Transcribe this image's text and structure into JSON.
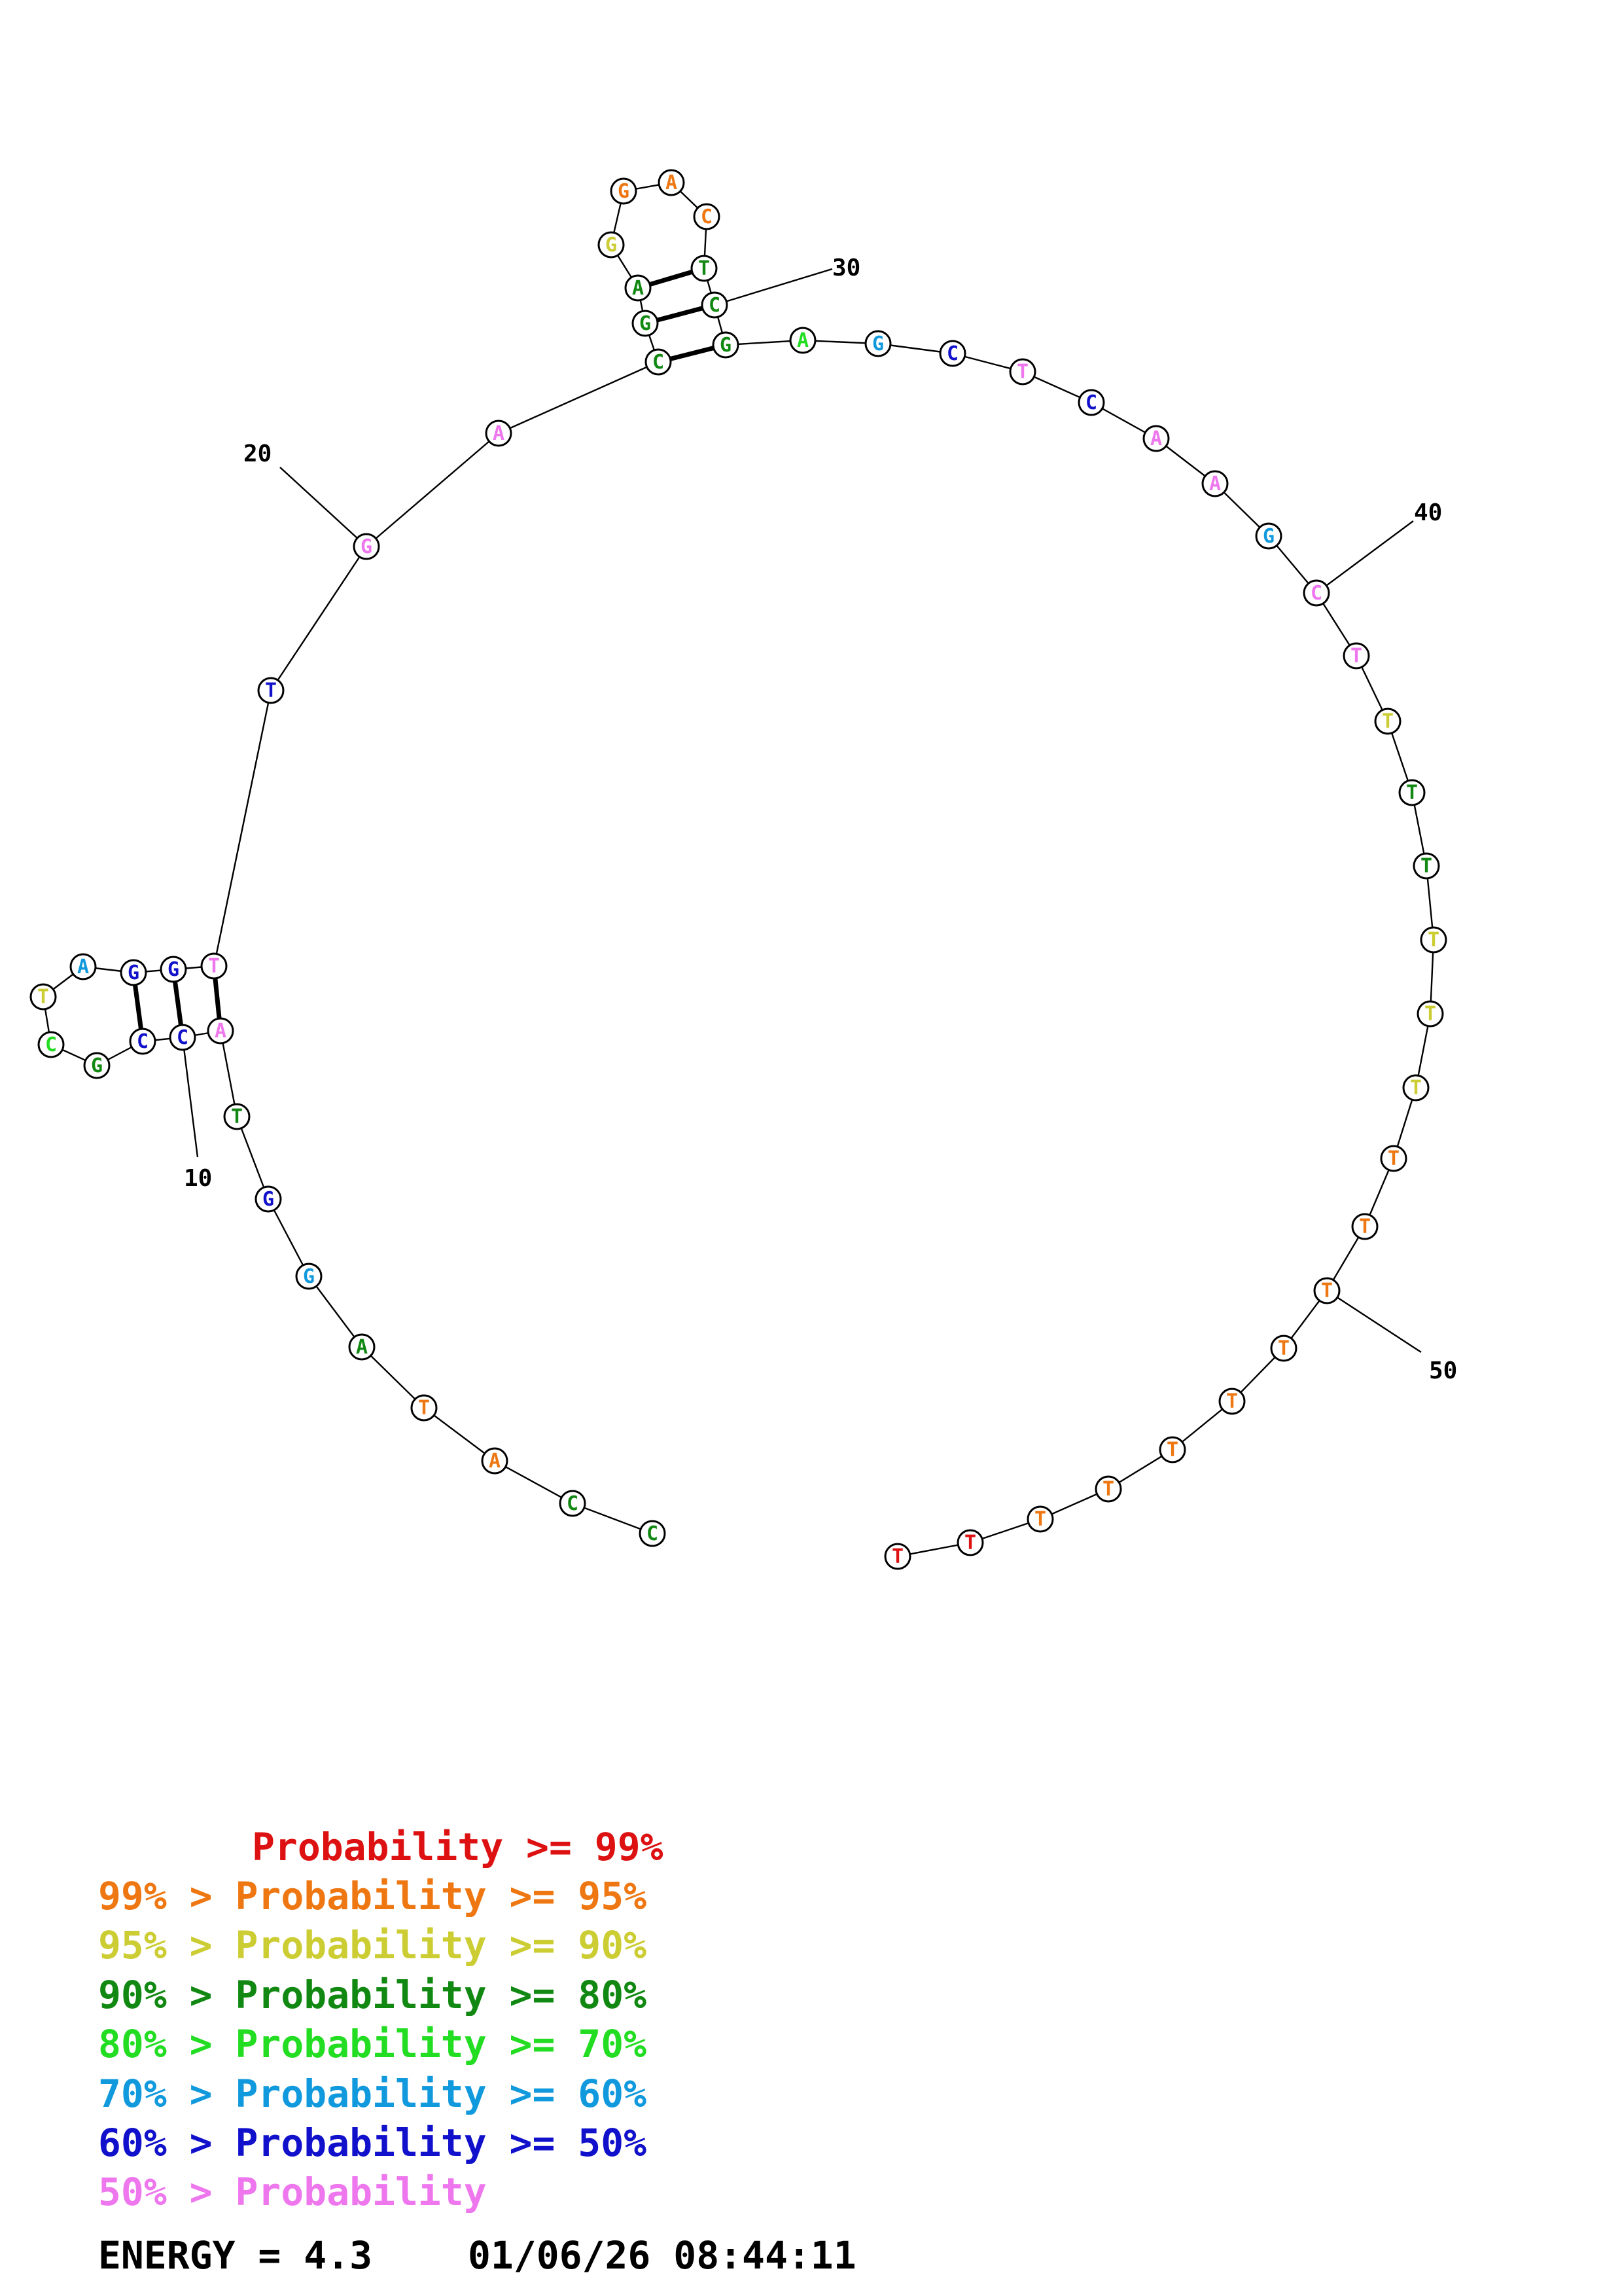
{
  "bases": [
    {
      "n": 1,
      "letter": "C",
      "color": "#118811"
    },
    {
      "n": 2,
      "letter": "C",
      "color": "#118811"
    },
    {
      "n": 3,
      "letter": "A",
      "color": "#ee7711"
    },
    {
      "n": 4,
      "letter": "T",
      "color": "#ee7711"
    },
    {
      "n": 5,
      "letter": "A",
      "color": "#118811"
    },
    {
      "n": 6,
      "letter": "G",
      "color": "#1199dd"
    },
    {
      "n": 7,
      "letter": "G",
      "color": "#1111cc"
    },
    {
      "n": 8,
      "letter": "T",
      "color": "#118811"
    },
    {
      "n": 9,
      "letter": "A",
      "color": "#ee77ee"
    },
    {
      "n": 10,
      "letter": "C",
      "color": "#1111cc"
    },
    {
      "n": 11,
      "letter": "C",
      "color": "#1111cc"
    },
    {
      "n": 12,
      "letter": "G",
      "color": "#118811"
    },
    {
      "n": 13,
      "letter": "C",
      "color": "#22dd22"
    },
    {
      "n": 14,
      "letter": "T",
      "color": "#cccc33"
    },
    {
      "n": 15,
      "letter": "A",
      "color": "#1199dd"
    },
    {
      "n": 16,
      "letter": "G",
      "color": "#1111cc"
    },
    {
      "n": 17,
      "letter": "G",
      "color": "#1111cc"
    },
    {
      "n": 18,
      "letter": "T",
      "color": "#ee77ee"
    },
    {
      "n": 19,
      "letter": "T",
      "color": "#1111cc"
    },
    {
      "n": 20,
      "letter": "G",
      "color": "#ee77ee"
    },
    {
      "n": 21,
      "letter": "A",
      "color": "#ee77ee"
    },
    {
      "n": 22,
      "letter": "C",
      "color": "#118811"
    },
    {
      "n": 23,
      "letter": "G",
      "color": "#118811"
    },
    {
      "n": 24,
      "letter": "A",
      "color": "#118811"
    },
    {
      "n": 25,
      "letter": "G",
      "color": "#cccc33"
    },
    {
      "n": 26,
      "letter": "G",
      "color": "#ee7711"
    },
    {
      "n": 27,
      "letter": "A",
      "color": "#ee7711"
    },
    {
      "n": 28,
      "letter": "C",
      "color": "#ee7711"
    },
    {
      "n": 29,
      "letter": "T",
      "color": "#118811"
    },
    {
      "n": 30,
      "letter": "C",
      "color": "#118811"
    },
    {
      "n": 31,
      "letter": "G",
      "color": "#118811"
    },
    {
      "n": 32,
      "letter": "A",
      "color": "#22dd22"
    },
    {
      "n": 33,
      "letter": "G",
      "color": "#1199dd"
    },
    {
      "n": 34,
      "letter": "C",
      "color": "#1111cc"
    },
    {
      "n": 35,
      "letter": "T",
      "color": "#ee77ee"
    },
    {
      "n": 36,
      "letter": "C",
      "color": "#1111cc"
    },
    {
      "n": 37,
      "letter": "A",
      "color": "#ee77ee"
    },
    {
      "n": 38,
      "letter": "A",
      "color": "#ee77ee"
    },
    {
      "n": 39,
      "letter": "G",
      "color": "#1199dd"
    },
    {
      "n": 40,
      "letter": "C",
      "color": "#ee77ee"
    },
    {
      "n": 41,
      "letter": "T",
      "color": "#ee77ee"
    },
    {
      "n": 42,
      "letter": "T",
      "color": "#cccc33"
    },
    {
      "n": 43,
      "letter": "T",
      "color": "#118811"
    },
    {
      "n": 44,
      "letter": "T",
      "color": "#118811"
    },
    {
      "n": 45,
      "letter": "T",
      "color": "#cccc33"
    },
    {
      "n": 46,
      "letter": "T",
      "color": "#cccc33"
    },
    {
      "n": 47,
      "letter": "T",
      "color": "#cccc33"
    },
    {
      "n": 48,
      "letter": "T",
      "color": "#ee7711"
    },
    {
      "n": 49,
      "letter": "T",
      "color": "#ee7711"
    },
    {
      "n": 50,
      "letter": "T",
      "color": "#ee7711"
    },
    {
      "n": 51,
      "letter": "T",
      "color": "#ee7711"
    },
    {
      "n": 52,
      "letter": "T",
      "color": "#ee7711"
    },
    {
      "n": 53,
      "letter": "T",
      "color": "#ee7711"
    },
    {
      "n": 54,
      "letter": "T",
      "color": "#ee7711"
    },
    {
      "n": 55,
      "letter": "T",
      "color": "#ee7711"
    },
    {
      "n": 56,
      "letter": "T",
      "color": "#dd1111"
    },
    {
      "n": 57,
      "letter": "T",
      "color": "#dd1111"
    }
  ],
  "pairs": [
    [
      9,
      18
    ],
    [
      10,
      17
    ],
    [
      11,
      16
    ],
    [
      22,
      31
    ],
    [
      23,
      30
    ],
    [
      24,
      29
    ]
  ],
  "position_labels": [
    {
      "n": 10,
      "text": "10"
    },
    {
      "n": 20,
      "text": "20"
    },
    {
      "n": 30,
      "text": "30"
    },
    {
      "n": 40,
      "text": "40"
    },
    {
      "n": 50,
      "text": "50"
    }
  ],
  "legend": [
    {
      "prefix": "    ",
      "text": "Probability >= 99%",
      "color": "#dd1111"
    },
    {
      "prefix": "99% > ",
      "text": "Probability >= 95%",
      "color": "#ee7711"
    },
    {
      "prefix": "95% > ",
      "text": "Probability >= 90%",
      "color": "#cccc33"
    },
    {
      "prefix": "90% > ",
      "text": "Probability >= 80%",
      "color": "#118811"
    },
    {
      "prefix": "80% > ",
      "text": "Probability >= 70%",
      "color": "#22dd22"
    },
    {
      "prefix": "70% > ",
      "text": "Probability >= 60%",
      "color": "#1199dd"
    },
    {
      "prefix": "60% > ",
      "text": "Probability >= 50%",
      "color": "#1111cc"
    },
    {
      "prefix": "50% > ",
      "text": "Probability",
      "color": "#ee77ee"
    }
  ],
  "footer": {
    "energy_label": "ENERGY = 4.3",
    "timestamp": "01/06/26 08:44:11"
  }
}
